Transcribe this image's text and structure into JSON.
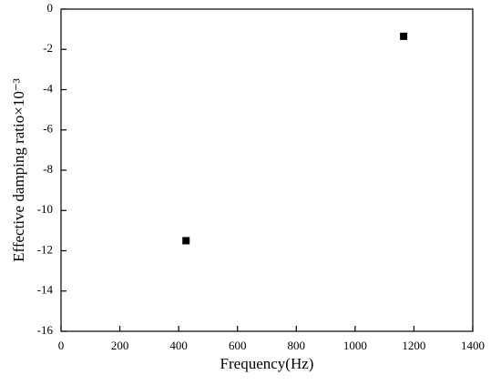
{
  "chart_data": {
    "type": "scatter",
    "x_label": "Frequency(Hz)",
    "y_label": "Effective damping ratio×10⁻³",
    "series": [
      {
        "name": "data",
        "color": "#000000",
        "x": [
          425,
          1165
        ],
        "values": [
          -11.5,
          -1.35
        ]
      }
    ],
    "xlim": [
      0,
      1400
    ],
    "xticks": [
      0,
      200,
      400,
      600,
      800,
      1000,
      1200,
      1400
    ],
    "ylim": [
      -16,
      0
    ],
    "yticks": [
      -16,
      -14,
      -12,
      -10,
      -8,
      -6,
      -4,
      -2,
      0
    ]
  }
}
